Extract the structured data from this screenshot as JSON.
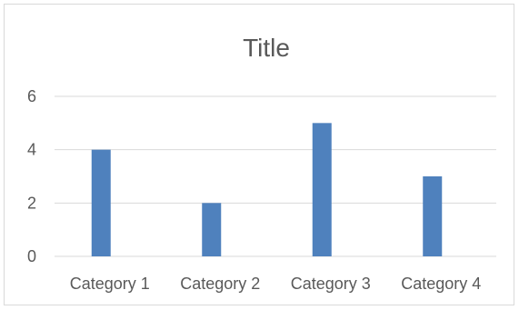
{
  "chart_data": {
    "type": "bar",
    "title": "Title",
    "categories": [
      "Category 1",
      "Category 2",
      "Category 3",
      "Category 4"
    ],
    "series": [
      {
        "values": [
          4,
          2,
          5,
          3
        ],
        "color": "#4f81bd"
      },
      {
        "values": [
          0,
          0,
          0,
          0
        ],
        "color": "#c0504d"
      }
    ],
    "ylim": [
      0,
      6
    ],
    "yticks": [
      0,
      2,
      4,
      6
    ],
    "grid": true,
    "legend": "none"
  }
}
